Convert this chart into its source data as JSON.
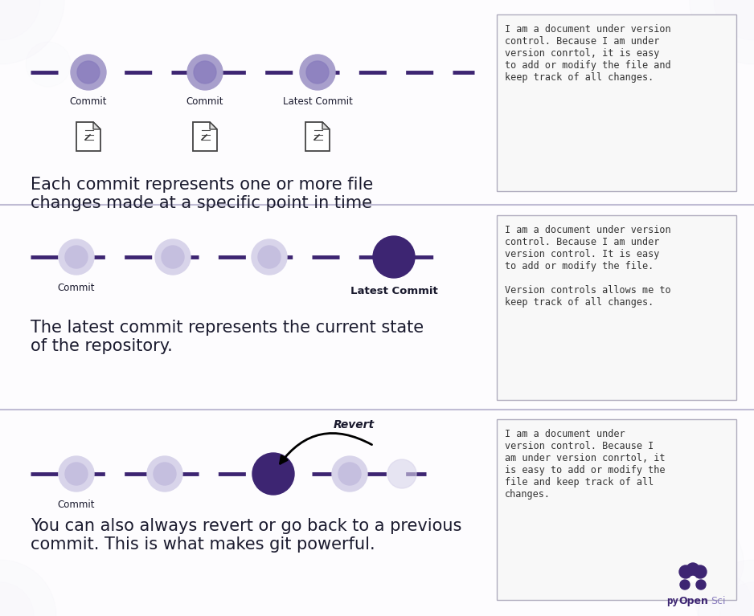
{
  "bg_color": "#f0eef7",
  "divider_color": "#c0bcd4",
  "dark_purple": "#3d2572",
  "mid_purple": "#8b7fbf",
  "light_purple": "#a89fcc",
  "very_light_purple": "#c5bfdf",
  "faint_purple": "#d8d4ea",
  "box_border": "#b0acbe",
  "box_bg": "#f8f8f8",
  "white": "#ffffff",
  "text_dark": "#1a1a2e",
  "text_mono_color": "#333333",
  "section1_text": "Each commit represents one or more file\nchanges made at a specific point in time",
  "section2_text": "The latest commit represents the current state\nof the repository.",
  "section3_text": "You can also always revert or go back to a previous\ncommit. This is what makes git powerful.",
  "box1_text": "I am a document under version\ncontrol. Because I am under\nversion conrtol, it is easy\nto add or modify the file and\nkeep track of all changes.",
  "box2_text": "I am a document under version\ncontrol. Because I am under\nversion control. It is easy\nto add or modify the file.\n\nVersion controls allows me to\nkeep track of all changes.",
  "box3_text": "I am a document under\nversion control. Because I\nam under version conrtol, it\nis easy to add or modify the\nfile and keep track of all\nchanges."
}
